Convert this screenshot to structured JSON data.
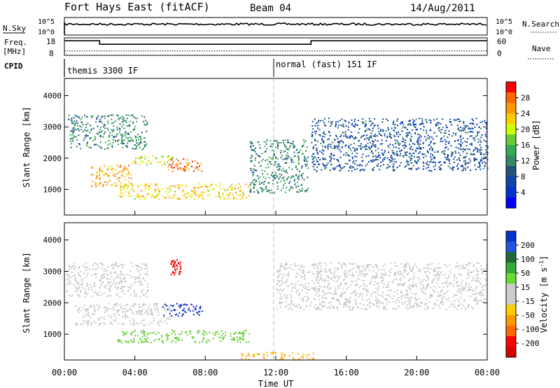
{
  "header": {
    "station": "Fort Hays East (fitACF)",
    "beam": "Beam 04",
    "date": "14/Aug/2011"
  },
  "panels": {
    "nsky_label": "N.Sky",
    "nsky_ticks": [
      "10^5",
      "10^0"
    ],
    "nsearch_label": "N.Search",
    "nsearch_ticks": [
      "10^5",
      "10^0"
    ],
    "freq_label": "Freq.",
    "freq_unit": "[MHz]",
    "freq_ticks": [
      "18",
      "8"
    ],
    "nave_label": "Nave",
    "nave_ticks": [
      "60",
      "0"
    ],
    "cpid_label": "CPID",
    "cpid_modes": [
      {
        "text": "themis 3300 IF",
        "start_hour": 0
      },
      {
        "text": "normal (fast) 151 IF",
        "start_hour": 12
      }
    ]
  },
  "power_colorbar": {
    "label": "Power [dB]",
    "ticks": [
      "28",
      "24",
      "20",
      "16",
      "12",
      "8",
      "4"
    ],
    "colors": [
      "#ff0000",
      "#ff6600",
      "#ff9900",
      "#ffcc00",
      "#ccff00",
      "#66cc33",
      "#33aa55",
      "#338866",
      "#225577",
      "#1144aa",
      "#0033cc",
      "#0000ff"
    ]
  },
  "velocity_colorbar": {
    "label": "Velocity [m s",
    "label_sup": "-1",
    "label_end": "]",
    "ticks": [
      "200",
      "100",
      "50",
      "15",
      "-15",
      "-50",
      "-100",
      "-200"
    ],
    "colors": [
      "#0033cc",
      "#2255dd",
      "#226633",
      "#33aa33",
      "#66dd33",
      "#cccccc",
      "#cccccc",
      "#ffcc00",
      "#ff9900",
      "#ff6600",
      "#ff0000",
      "#dd0000"
    ]
  },
  "chart_data": {
    "type": "heatmap",
    "xlabel": "Time UT",
    "ylabel": "Slant Range [km]",
    "x_ticks": [
      "00:00",
      "04:00",
      "08:00",
      "12:00",
      "16:00",
      "20:00",
      "00:00"
    ],
    "xlim_hours": [
      0,
      24
    ],
    "ylim_km": [
      180,
      4550
    ],
    "y_ticks": [
      1000,
      2000,
      3000,
      4000
    ],
    "nave_series": {
      "hours": [
        0,
        2,
        2,
        14,
        14,
        24
      ],
      "values": [
        50,
        50,
        38,
        38,
        50,
        50
      ]
    },
    "freq_series": {
      "hours": [
        0,
        24
      ],
      "values": [
        10.5,
        10.5
      ]
    },
    "power_panel": {
      "echo_regions": [
        {
          "hour_start": 0.2,
          "hour_end": 4.7,
          "range_km": [
            2300,
            3400
          ],
          "power_db": 12
        },
        {
          "hour_start": 1.5,
          "hour_end": 3.8,
          "range_km": [
            1100,
            1800
          ],
          "power_db": 24
        },
        {
          "hour_start": 3.8,
          "hour_end": 6.5,
          "range_km": [
            1800,
            2100
          ],
          "power_db": 20
        },
        {
          "hour_start": 5.8,
          "hour_end": 7.8,
          "range_km": [
            1600,
            2000
          ],
          "power_db": 26
        },
        {
          "hour_start": 3.0,
          "hour_end": 10.5,
          "range_km": [
            700,
            1200
          ],
          "power_db": 22
        },
        {
          "hour_start": 10.5,
          "hour_end": 13.8,
          "range_km": [
            900,
            2600
          ],
          "power_db": 12
        },
        {
          "hour_start": 14.0,
          "hour_end": 24.0,
          "range_km": [
            1600,
            3300
          ],
          "power_db": 8
        }
      ]
    },
    "velocity_panel": {
      "echo_regions": [
        {
          "hour_start": 0.1,
          "hour_end": 4.7,
          "range_km": [
            2200,
            3300
          ],
          "velocity": 0
        },
        {
          "hour_start": 0.6,
          "hour_end": 6.0,
          "range_km": [
            1300,
            2000
          ],
          "velocity": 0
        },
        {
          "hour_start": 5.5,
          "hour_end": 7.8,
          "range_km": [
            1600,
            2000
          ],
          "velocity": 180
        },
        {
          "hour_start": 6.0,
          "hour_end": 6.6,
          "range_km": [
            2900,
            3400
          ],
          "velocity": -200
        },
        {
          "hour_start": 3.0,
          "hour_end": 10.5,
          "range_km": [
            750,
            1150
          ],
          "velocity": 30
        },
        {
          "hour_start": 10.0,
          "hour_end": 14.2,
          "range_km": [
            200,
            450
          ],
          "velocity": -60
        },
        {
          "hour_start": 12.0,
          "hour_end": 24.0,
          "range_km": [
            1800,
            3300
          ],
          "velocity": 0
        }
      ]
    }
  }
}
